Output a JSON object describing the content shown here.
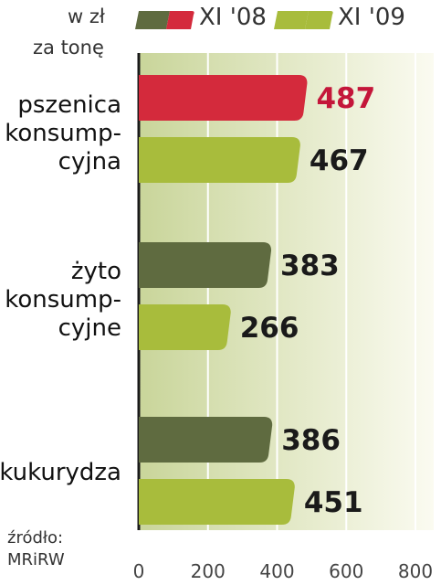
{
  "unit_label": [
    "w zł",
    "za tonę"
  ],
  "source_label": [
    "źródło:",
    "MRiRW"
  ],
  "colors": {
    "xi08_primary": "#d42a3c",
    "xi08_others": "#5f6b40",
    "xi09": "#a8bc3c",
    "value_highlight": "#c4163a",
    "value_default": "#1a1a1a",
    "gridline": "#ffffff",
    "plot_bg_left": "#c9d59a",
    "plot_bg_right": "#fbfbf1"
  },
  "chart_data": {
    "type": "bar",
    "orientation": "horizontal",
    "categories": [
      [
        "pszenica",
        "konsump-",
        "cyjna"
      ],
      [
        "żyto",
        "konsump-",
        "cyjne"
      ],
      [
        "kukurydza"
      ]
    ],
    "series": [
      {
        "name": "XI '08",
        "values": [
          487,
          383,
          386
        ]
      },
      {
        "name": "XI '09",
        "values": [
          467,
          266,
          451
        ]
      }
    ],
    "xlim": [
      0,
      800
    ],
    "xticks": [
      "0",
      "200",
      "400",
      "600",
      "800"
    ],
    "grid": true,
    "legend_position": "top"
  }
}
